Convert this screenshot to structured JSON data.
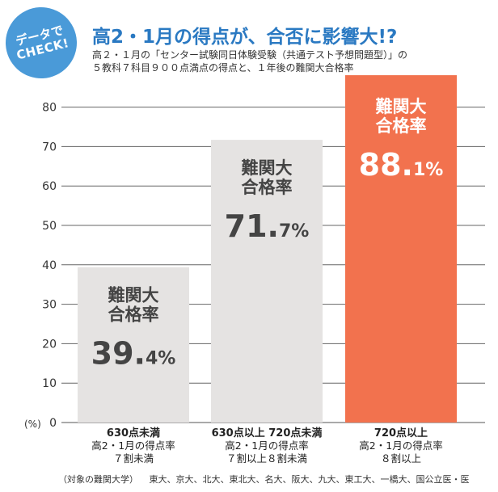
{
  "badge": {
    "line1": "データで",
    "line2": "CHECK!"
  },
  "headline": "高2・1月の得点が、合否に影響大!?",
  "subtitle": [
    "高２・１月の「センター試験同日体験受験（共通テスト予想問題型）」の",
    "５教科７科目９００点満点の得点と、１年後の難関大合格率"
  ],
  "footnote": {
    "label": "（対象の難関大学）",
    "universities": "東大、京大、北大、東北大、名大、阪大、九大、東工大、一橋大、国公立医・医"
  },
  "colors": {
    "bar_gray": "#e5e3e2",
    "bar_highlight": "#f2724e",
    "badge": "#4a9ad8",
    "headline": "#2a79c2",
    "value_gray": "#444444",
    "value_highlight": "#ffffff"
  },
  "chart_data": {
    "type": "bar",
    "y_unit": "(%)",
    "ylim": [
      0,
      85
    ],
    "y_ticks": [
      "0",
      "10",
      "20",
      "30",
      "40",
      "50",
      "60",
      "70",
      "80"
    ],
    "grid": true,
    "bar_label_lines": [
      "難関大",
      "合格率"
    ],
    "categories": [
      [
        "630点未満",
        "高2・1月の得点率",
        "７割未満"
      ],
      [
        "630点以上 720点未満",
        "高2・1月の得点率",
        "７割以上８割未満"
      ],
      [
        "720点以上",
        "高2・1月の得点率",
        "８割以上"
      ]
    ],
    "values": [
      39.4,
      71.7,
      88.1
    ],
    "value_labels": [
      {
        "main": "39.",
        "small": "4%"
      },
      {
        "main": "71.",
        "small": "7%"
      },
      {
        "main": "88.",
        "small": "1%"
      }
    ],
    "highlight_index": 2
  }
}
